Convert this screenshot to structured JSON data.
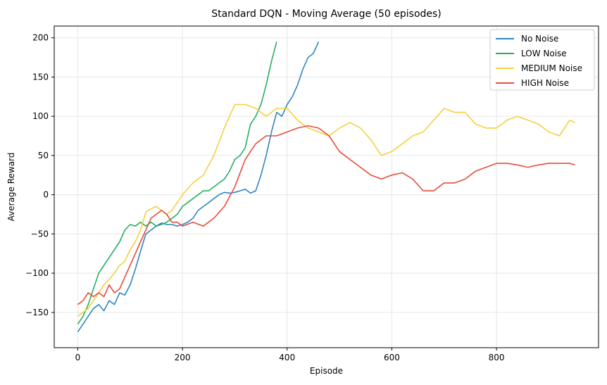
{
  "chart_data": {
    "type": "line",
    "title": "Standard DQN - Moving Average (50 episodes)",
    "xlabel": "Episode",
    "ylabel": "Average Reward",
    "xlim": [
      -45,
      995
    ],
    "ylim": [
      -195,
      215
    ],
    "xticks": [
      0,
      200,
      400,
      600,
      800
    ],
    "yticks": [
      -150,
      -100,
      -50,
      0,
      50,
      100,
      150,
      200
    ],
    "xtick_labels": [
      "0",
      "200",
      "400",
      "600",
      "800"
    ],
    "ytick_labels": [
      "−150",
      "−100",
      "−50",
      "0",
      "50",
      "100",
      "150",
      "200"
    ],
    "grid": true,
    "legend_position": "top-right",
    "series": [
      {
        "name": "No Noise",
        "color": "#2e86c1",
        "x": [
          0,
          10,
          20,
          30,
          40,
          50,
          60,
          70,
          80,
          90,
          100,
          110,
          120,
          130,
          140,
          150,
          160,
          170,
          180,
          190,
          200,
          210,
          220,
          230,
          240,
          250,
          260,
          270,
          280,
          290,
          300,
          310,
          320,
          330,
          340,
          350,
          360,
          370,
          380,
          390,
          400,
          410,
          420,
          430,
          440,
          450,
          460
        ],
        "values": [
          -175,
          -165,
          -155,
          -145,
          -140,
          -148,
          -135,
          -140,
          -125,
          -128,
          -115,
          -95,
          -72,
          -50,
          -45,
          -40,
          -36,
          -38,
          -38,
          -40,
          -38,
          -35,
          -30,
          -20,
          -15,
          -10,
          -5,
          0,
          3,
          2,
          3,
          5,
          7,
          2,
          5,
          25,
          50,
          80,
          105,
          100,
          115,
          125,
          140,
          160,
          175,
          180,
          195
        ]
      },
      {
        "name": "LOW Noise",
        "color": "#27ae60",
        "x": [
          0,
          10,
          20,
          30,
          40,
          50,
          60,
          70,
          80,
          90,
          100,
          110,
          120,
          130,
          140,
          150,
          160,
          170,
          180,
          190,
          200,
          210,
          220,
          230,
          240,
          250,
          260,
          270,
          280,
          290,
          300,
          310,
          320,
          330,
          340,
          350,
          360,
          370,
          380
        ],
        "values": [
          -165,
          -155,
          -140,
          -120,
          -100,
          -90,
          -80,
          -70,
          -60,
          -45,
          -38,
          -40,
          -35,
          -40,
          -35,
          -40,
          -38,
          -35,
          -30,
          -25,
          -15,
          -10,
          -5,
          0,
          5,
          5,
          10,
          15,
          20,
          30,
          45,
          50,
          60,
          90,
          100,
          115,
          140,
          170,
          195
        ]
      },
      {
        "name": "MEDIUM Noise",
        "color": "#f4d03f",
        "x": [
          0,
          10,
          20,
          30,
          40,
          50,
          60,
          70,
          80,
          90,
          100,
          110,
          120,
          130,
          140,
          150,
          160,
          170,
          180,
          190,
          200,
          220,
          240,
          260,
          280,
          300,
          320,
          340,
          360,
          380,
          400,
          420,
          440,
          460,
          480,
          500,
          520,
          540,
          560,
          580,
          600,
          620,
          640,
          660,
          680,
          700,
          720,
          740,
          760,
          780,
          800,
          820,
          840,
          860,
          880,
          900,
          920,
          940,
          950
        ],
        "values": [
          -155,
          -150,
          -145,
          -135,
          -125,
          -115,
          -108,
          -100,
          -90,
          -85,
          -70,
          -60,
          -45,
          -22,
          -18,
          -15,
          -20,
          -25,
          -20,
          -10,
          0,
          15,
          25,
          50,
          85,
          115,
          115,
          110,
          100,
          110,
          110,
          95,
          85,
          80,
          75,
          85,
          92,
          85,
          70,
          50,
          55,
          65,
          75,
          80,
          95,
          110,
          105,
          105,
          90,
          85,
          85,
          95,
          100,
          95,
          90,
          80,
          75,
          95,
          92
        ]
      },
      {
        "name": "HIGH Noise",
        "color": "#e74c3c",
        "x": [
          0,
          10,
          20,
          30,
          40,
          50,
          60,
          70,
          80,
          90,
          100,
          110,
          120,
          130,
          140,
          150,
          160,
          170,
          180,
          190,
          200,
          220,
          240,
          260,
          280,
          300,
          320,
          340,
          360,
          380,
          400,
          420,
          440,
          460,
          480,
          500,
          520,
          540,
          560,
          580,
          600,
          620,
          640,
          660,
          680,
          700,
          720,
          740,
          760,
          780,
          800,
          820,
          840,
          860,
          880,
          900,
          920,
          940,
          950
        ],
        "values": [
          -140,
          -135,
          -125,
          -130,
          -125,
          -130,
          -115,
          -125,
          -120,
          -105,
          -90,
          -75,
          -60,
          -45,
          -30,
          -25,
          -20,
          -25,
          -35,
          -35,
          -40,
          -35,
          -40,
          -30,
          -15,
          10,
          45,
          65,
          75,
          75,
          80,
          85,
          88,
          85,
          75,
          55,
          45,
          35,
          25,
          20,
          25,
          28,
          20,
          5,
          5,
          15,
          15,
          20,
          30,
          35,
          40,
          40,
          38,
          35,
          38,
          40,
          40,
          40,
          38
        ]
      }
    ]
  }
}
